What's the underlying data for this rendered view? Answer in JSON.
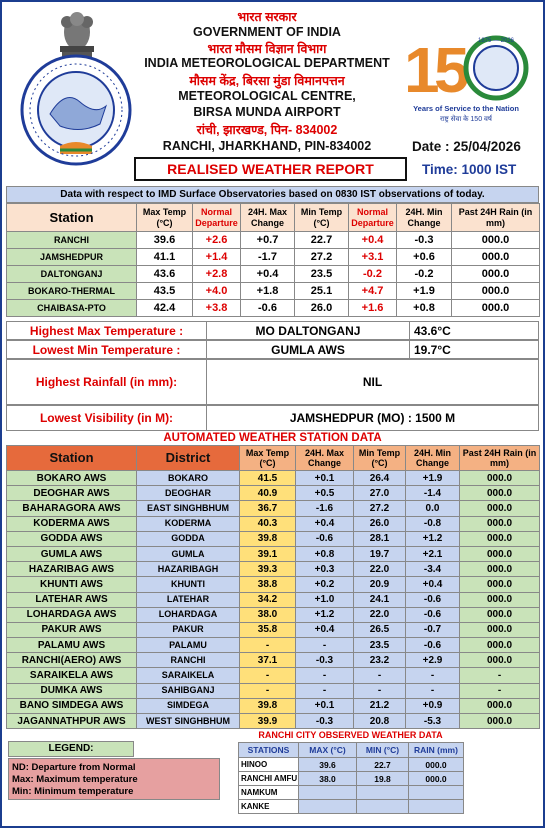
{
  "header": {
    "hindi_govt": "भारत सरकार",
    "govt": "GOVERNMENT OF INDIA",
    "hindi_dept": "भारत मौसम विज्ञान विभाग",
    "dept": "INDIA METEOROLOGICAL DEPARTMENT",
    "hindi_centre": "मौसम केंद्र, बिरसा मुंडा विमानपत्तन",
    "centre": "METEOROLOGICAL CENTRE,",
    "airport": "BIRSA MUNDA AIRPORT",
    "hindi_address": "रांची, झारखण्ड, पिन- 834002",
    "address": "RANCHI, JHARKHAND, PIN-834002",
    "report_title": "REALISED WEATHER REPORT",
    "date_label": "Date : 25/04/2026",
    "time_label": "Time: 1000 IST",
    "badge_years": "1875 — 2026",
    "badge_caption": "Years of Service to the Nation",
    "badge_hindi": "राष्ट्र सेवा के 150 वर्ष"
  },
  "obs": {
    "caption": "Data with respect to IMD Surface Observatories based on 0830 IST observations of today.",
    "headers": [
      "Station",
      "Max Temp (°C)",
      "Normal Departure",
      "24H. Max Change",
      "Min Temp (°C)",
      "Normal Departure",
      "24H. Min Change",
      "Past 24H Rain (in mm)"
    ],
    "rows": [
      [
        "RANCHI",
        "39.6",
        "+2.6",
        "+0.7",
        "22.7",
        "+0.4",
        "-0.3",
        "000.0"
      ],
      [
        "JAMSHEDPUR",
        "41.1",
        "+1.4",
        "-1.7",
        "27.2",
        "+3.1",
        "+0.6",
        "000.0"
      ],
      [
        "DALTONGANJ",
        "43.6",
        "+2.8",
        "+0.4",
        "23.5",
        "-0.2",
        "-0.2",
        "000.0"
      ],
      [
        "BOKARO-THERMAL",
        "43.5",
        "+4.0",
        "+1.8",
        "25.1",
        "+4.7",
        "+1.9",
        "000.0"
      ],
      [
        "CHAIBASA-PTO",
        "42.4",
        "+3.8",
        "-0.6",
        "26.0",
        "+1.6",
        "+0.8",
        "000.0"
      ]
    ]
  },
  "extremes": {
    "max_label": "Highest Max Temperature :",
    "max_station": "MO DALTONGANJ",
    "max_value": "43.6°C",
    "min_label": "Lowest Min Temperature :",
    "min_station": "GUMLA AWS",
    "min_value": "19.7°C",
    "rain_label": "Highest Rainfall (in mm):",
    "rain_value": "NIL",
    "vis_label": "Lowest Visibility (in M):",
    "vis_value": "JAMSHEDPUR (MO) : 1500 M"
  },
  "aws": {
    "caption": "AUTOMATED WEATHER STATION DATA",
    "headers": [
      "Station",
      "District",
      "Max Temp (°C)",
      "24H. Max Change",
      "Min Temp (°C)",
      "24H. Min Change",
      "Past 24H Rain (in mm)"
    ],
    "rows": [
      [
        "BOKARO AWS",
        "BOKARO",
        "41.5",
        "+0.1",
        "26.4",
        "+1.9",
        "000.0"
      ],
      [
        "DEOGHAR AWS",
        "DEOGHAR",
        "40.9",
        "+0.5",
        "27.0",
        "-1.4",
        "000.0"
      ],
      [
        "BAHARAGORA AWS",
        "EAST SINGHBHUM",
        "36.7",
        "-1.6",
        "27.2",
        "0.0",
        "000.0"
      ],
      [
        "KODERMA AWS",
        "KODERMA",
        "40.3",
        "+0.4",
        "26.0",
        "-0.8",
        "000.0"
      ],
      [
        "GODDA AWS",
        "GODDA",
        "39.8",
        "-0.6",
        "28.1",
        "+1.2",
        "000.0"
      ],
      [
        "GUMLA AWS",
        "GUMLA",
        "39.1",
        "+0.8",
        "19.7",
        "+2.1",
        "000.0"
      ],
      [
        "HAZARIBAG AWS",
        "HAZARIBAGH",
        "39.3",
        "+0.3",
        "22.0",
        "-3.4",
        "000.0"
      ],
      [
        "KHUNTI AWS",
        "KHUNTI",
        "38.8",
        "+0.2",
        "20.9",
        "+0.4",
        "000.0"
      ],
      [
        "LATEHAR AWS",
        "LATEHAR",
        "34.2",
        "+1.0",
        "24.1",
        "-0.6",
        "000.0"
      ],
      [
        "LOHARDAGA AWS",
        "LOHARDAGA",
        "38.0",
        "+1.2",
        "22.0",
        "-0.6",
        "000.0"
      ],
      [
        "PAKUR AWS",
        "PAKUR",
        "35.8",
        "+0.4",
        "26.5",
        "-0.7",
        "000.0"
      ],
      [
        "PALAMU AWS",
        "PALAMU",
        "-",
        "-",
        "23.5",
        "-0.6",
        "000.0"
      ],
      [
        "RANCHI(AERO) AWS",
        "RANCHI",
        "37.1",
        "-0.3",
        "23.2",
        "+2.9",
        "000.0"
      ],
      [
        "SARAIKELA AWS",
        "SARAIKELA",
        "-",
        "-",
        "-",
        "-",
        "-"
      ],
      [
        "DUMKA AWS",
        "SAHIBGANJ",
        "-",
        "-",
        "-",
        "-",
        "-"
      ],
      [
        "BANO SIMDEGA AWS",
        "SIMDEGA",
        "39.8",
        "+0.1",
        "21.2",
        "+0.9",
        "000.0"
      ],
      [
        "JAGANNATHPUR AWS",
        "WEST SINGHBHUM",
        "39.9",
        "-0.3",
        "20.8",
        "-5.3",
        "000.0"
      ]
    ]
  },
  "legend": {
    "title": "LEGEND:",
    "line1": "ND: Departure from Normal",
    "line2": "Max: Maximum temperature",
    "line3": "Min: Minimum temperature"
  },
  "city": {
    "caption": "RANCHI CITY OBSERVED WEATHER DATA",
    "headers": [
      "STATIONS",
      "MAX (°C)",
      "MIN (°C)",
      "RAIN (mm)"
    ],
    "rows": [
      [
        "HINOO",
        "39.6",
        "22.7",
        "000.0"
      ],
      [
        "RANCHI AMFU",
        "38.0",
        "19.8",
        "000.0"
      ],
      [
        "NAMKUM",
        "",
        "",
        ""
      ],
      [
        "KANKE",
        "",
        "",
        ""
      ]
    ]
  }
}
